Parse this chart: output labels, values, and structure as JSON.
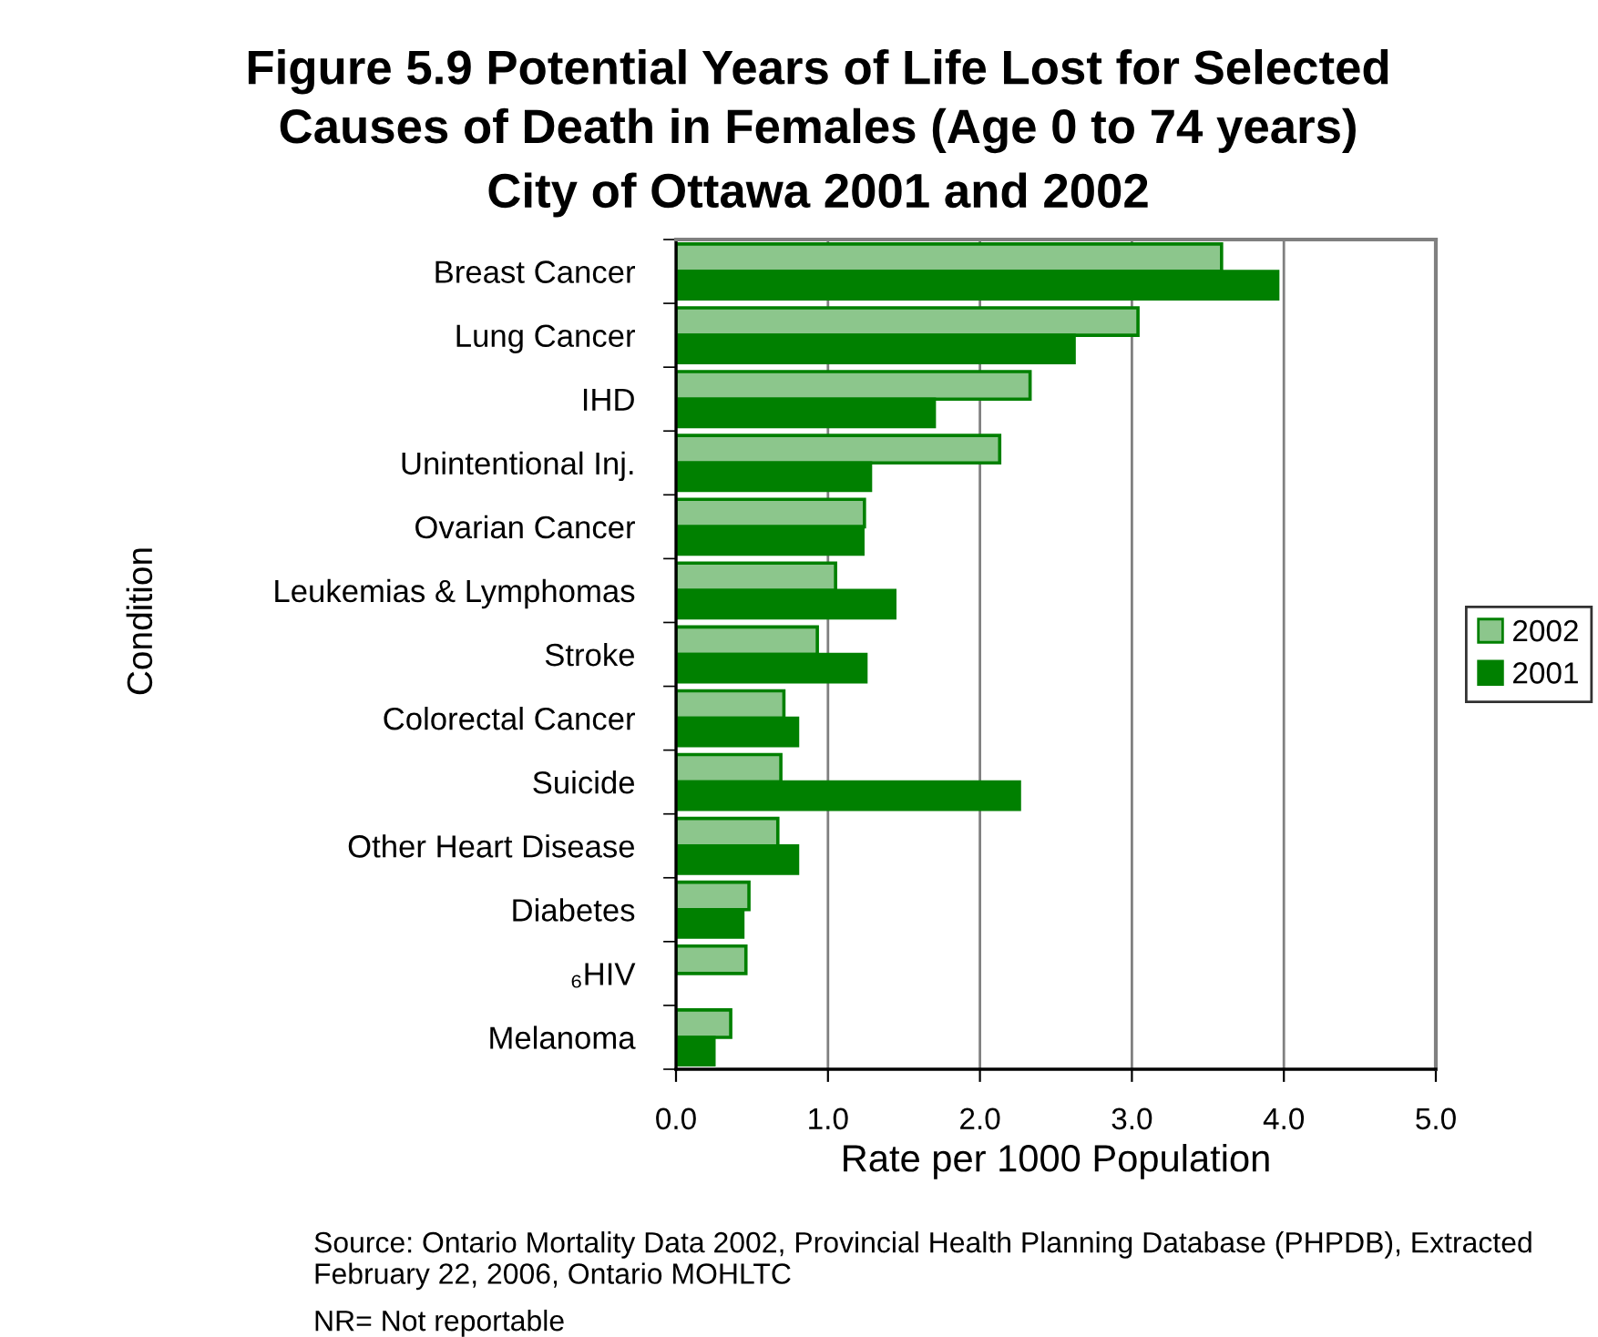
{
  "chart_data": {
    "type": "bar",
    "orientation": "horizontal",
    "title": "Figure 5.9 Potential Years of Life Lost for Selected\nCauses of Death in Females (Age 0 to 74 years)",
    "subtitle": "City of Ottawa 2001 and 2002",
    "xlabel": "Rate per 1000 Population",
    "ylabel": "Condition",
    "categories": [
      "Breast Cancer",
      "Lung Cancer",
      "IHD",
      "Unintentional Inj.",
      "Ovarian Cancer",
      "Leukemias & Lymphomas",
      "Stroke",
      "Colorectal Cancer",
      "Suicide",
      "Other Heart Disease",
      "Diabetes",
      "₆HIV",
      "Melanoma"
    ],
    "series": [
      {
        "name": "2002",
        "color": "#8cc68c",
        "values": [
          3.59,
          3.04,
          2.33,
          2.13,
          1.24,
          1.05,
          0.93,
          0.71,
          0.69,
          0.67,
          0.48,
          0.46,
          0.36
        ]
      },
      {
        "name": "2001",
        "color": "#008000",
        "values": [
          3.96,
          2.62,
          1.7,
          1.28,
          1.23,
          1.44,
          1.25,
          0.8,
          2.26,
          0.8,
          0.44,
          null,
          0.25
        ]
      }
    ],
    "xlim": [
      0,
      5
    ],
    "xticks": [
      {
        "value": 0,
        "label": "0.0"
      },
      {
        "value": 1,
        "label": "1.0"
      },
      {
        "value": 2,
        "label": "2.0"
      },
      {
        "value": 3,
        "label": "3.0"
      },
      {
        "value": 4,
        "label": "4.0"
      },
      {
        "value": 5,
        "label": "5.0"
      }
    ],
    "grid": "x",
    "legend": "right",
    "annotations": [
      "Source: Ontario Mortality Data 2002, Provincial Health Planning Database (PHPDB), Extracted February 22, 2006, Ontario MOHLTC",
      "NR= Not reportable"
    ]
  }
}
